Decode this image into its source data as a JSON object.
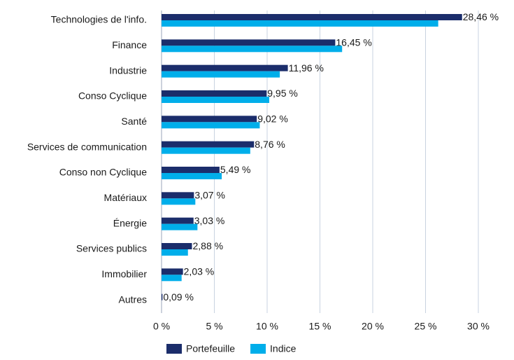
{
  "chart_data": {
    "type": "bar",
    "orientation": "horizontal",
    "categories": [
      "Technologies de l'info.",
      "Finance",
      "Industrie",
      "Conso Cyclique",
      "Santé",
      "Services de communication",
      "Conso non Cyclique",
      "Matériaux",
      "Énergie",
      "Services publics",
      "Immobilier",
      "Autres"
    ],
    "series": [
      {
        "name": "Portefeuille",
        "color": "#1b2d6b",
        "values": [
          28.46,
          16.45,
          11.96,
          9.95,
          9.02,
          8.76,
          5.49,
          3.07,
          3.03,
          2.88,
          2.03,
          0.09
        ],
        "value_labels": [
          "28,46 %",
          "16,45 %",
          "11,96 %",
          "9,95 %",
          "9,02 %",
          "8,76 %",
          "5,49 %",
          "3,07 %",
          "3,03 %",
          "2,88 %",
          "2,03 %",
          "0,09 %"
        ]
      },
      {
        "name": "Indice",
        "color": "#00aeea",
        "values": [
          26.2,
          17.1,
          11.2,
          10.2,
          9.3,
          8.4,
          5.7,
          3.2,
          3.4,
          2.5,
          1.9,
          0
        ]
      }
    ],
    "xlim": [
      0,
      30
    ],
    "xticks": [
      {
        "value": 0,
        "label": "0 %"
      },
      {
        "value": 5,
        "label": "5 %"
      },
      {
        "value": 10,
        "label": "10 %"
      },
      {
        "value": 15,
        "label": "15 %"
      },
      {
        "value": 20,
        "label": "20 %"
      },
      {
        "value": 25,
        "label": "25 %"
      },
      {
        "value": 30,
        "label": "30 %"
      }
    ],
    "grid": true,
    "legend": "bottom"
  }
}
